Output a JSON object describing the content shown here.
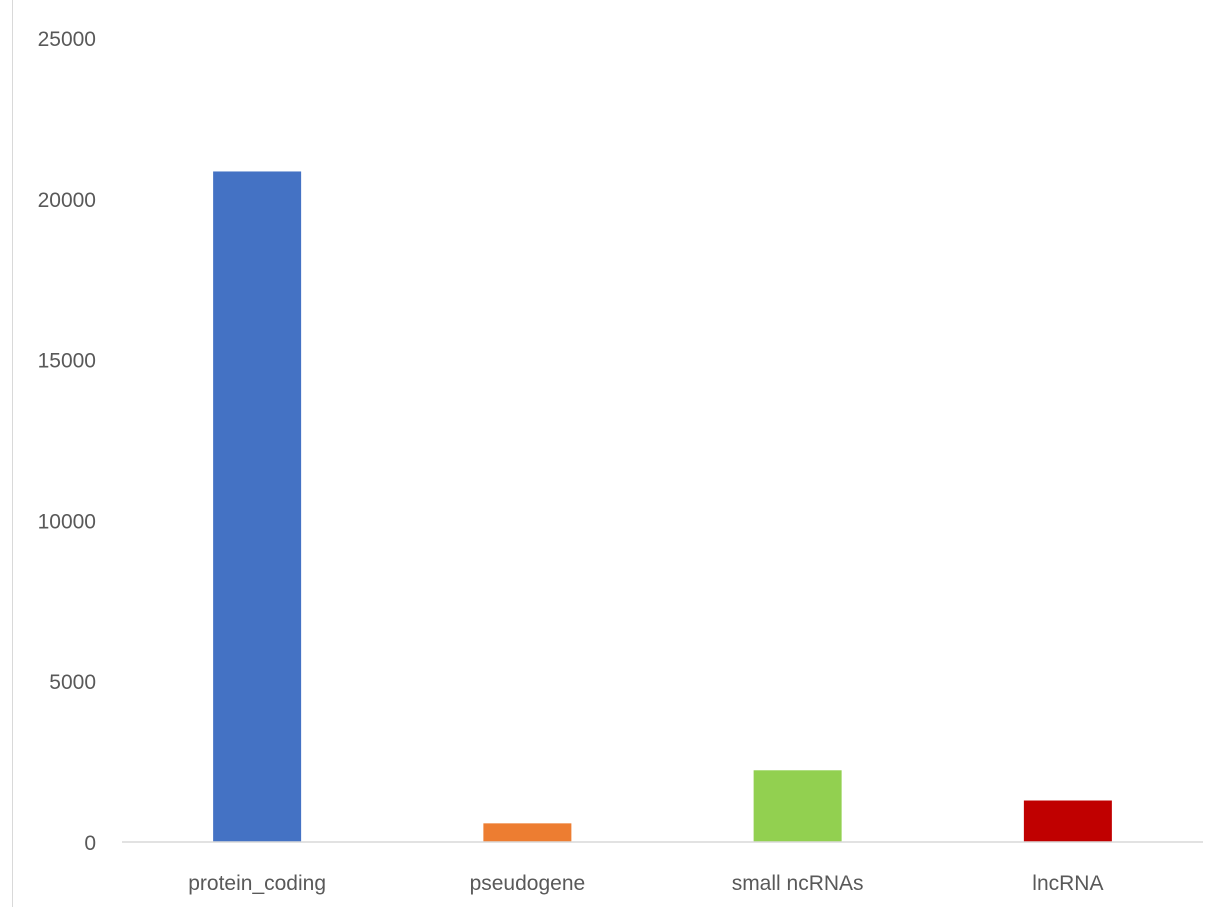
{
  "chart_data": {
    "type": "bar",
    "categories": [
      "protein_coding",
      "pseudogene",
      "small ncRNAs",
      "lncRNA"
    ],
    "values": [
      20850,
      580,
      2230,
      1290
    ],
    "colors": [
      "#4472C4",
      "#ED7D31",
      "#92D050",
      "#C00000"
    ],
    "ylim": [
      0,
      25000
    ],
    "yticks": [
      "0",
      "5000",
      "10000",
      "15000",
      "20000",
      "25000"
    ],
    "grid": false,
    "legend": "none",
    "title": "",
    "xlabel": "",
    "ylabel": ""
  }
}
